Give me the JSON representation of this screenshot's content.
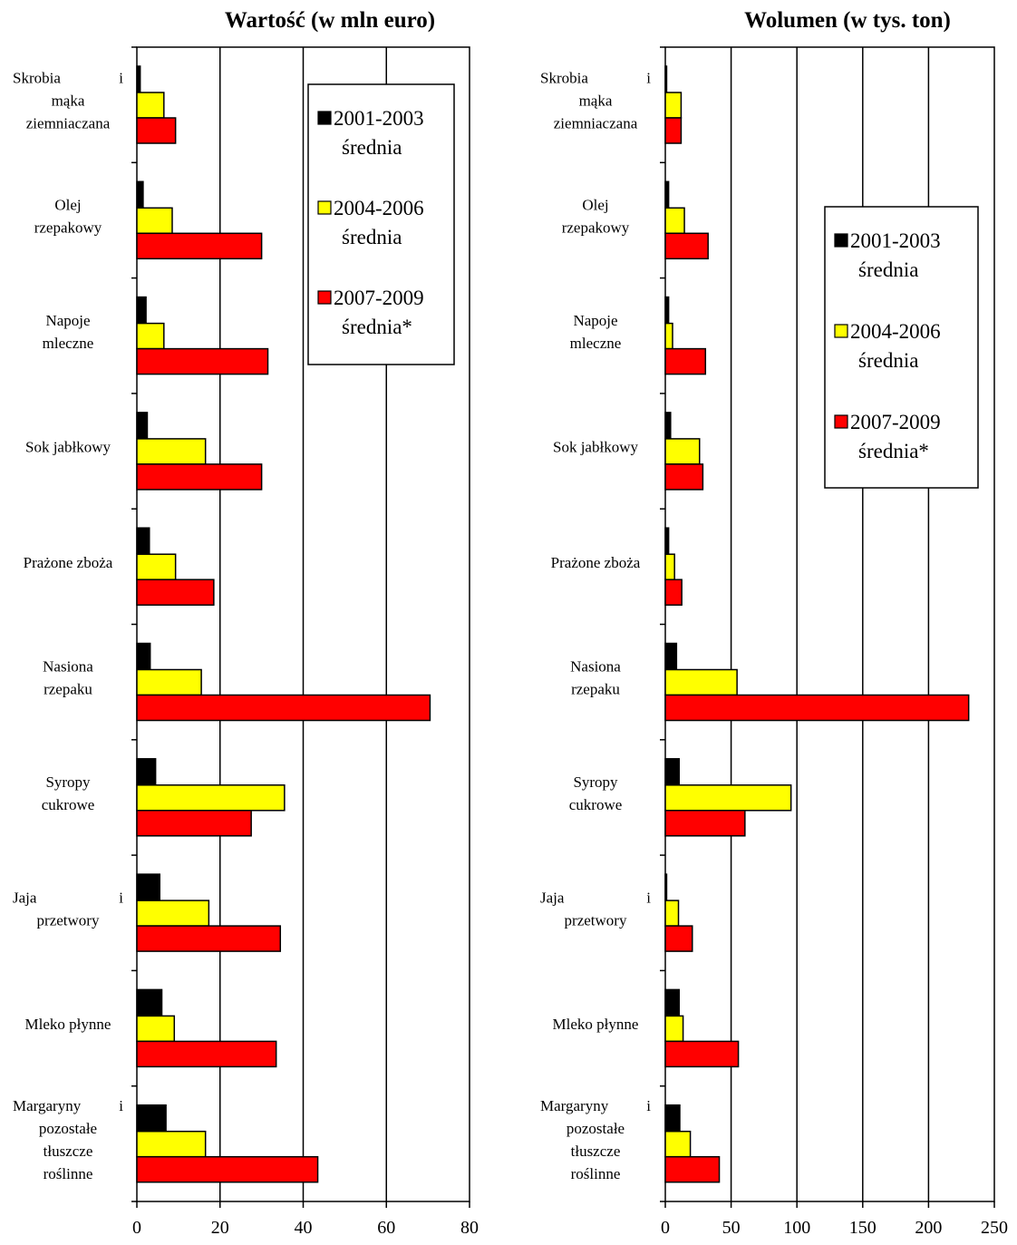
{
  "colors": {
    "s1": "#000000",
    "s2": "#ffff00",
    "s3": "#ff0000"
  },
  "chart_data": [
    {
      "type": "bar",
      "orientation": "horizontal",
      "title": "Wartość (w mln euro)",
      "xlim": [
        0,
        80
      ],
      "ticks": [
        0,
        20,
        40,
        60,
        80
      ],
      "grid": true,
      "legend_position": "top-right",
      "category_lines": [
        [
          "Skrobia",
          "i",
          "mąka",
          "ziemniaczana"
        ],
        [
          "Olej",
          "rzepakowy"
        ],
        [
          "Napoje",
          "mleczne"
        ],
        [
          "Sok jabłkowy"
        ],
        [
          "Prażone zboża"
        ],
        [
          "Nasiona",
          "rzepaku"
        ],
        [
          "Syropy",
          "cukrowe"
        ],
        [
          "Jaja",
          "i",
          "przetwory"
        ],
        [
          "Mleko płynne"
        ],
        [
          "Margaryny",
          "i",
          "pozostałe",
          "tłuszcze",
          "roślinne"
        ]
      ],
      "series": [
        {
          "name": "2001-2003 średnia",
          "color": "#000000",
          "values": [
            0.8,
            1.5,
            2.2,
            2.5,
            3.0,
            3.2,
            4.5,
            5.5,
            6.0,
            7.0
          ]
        },
        {
          "name": "2004-2006 średnia",
          "color": "#ffff00",
          "values": [
            6.5,
            8.5,
            6.5,
            16.5,
            9.3,
            15.5,
            35.5,
            17.3,
            9.0,
            16.5
          ]
        },
        {
          "name": "2007-2009 średnia*",
          "color": "#ff0000",
          "values": [
            9.3,
            30.0,
            31.5,
            30.0,
            18.5,
            70.5,
            27.5,
            34.5,
            33.5,
            43.5
          ]
        }
      ]
    },
    {
      "type": "bar",
      "orientation": "horizontal",
      "title": "Wolumen (w tys. ton)",
      "xlim": [
        0,
        250
      ],
      "ticks": [
        0,
        50,
        100,
        150,
        200,
        250
      ],
      "grid": true,
      "legend_position": "upper-right",
      "category_lines": [
        [
          "Skrobia",
          "i",
          "mąka",
          "ziemniaczana"
        ],
        [
          "Olej",
          "rzepakowy"
        ],
        [
          "Napoje",
          "mleczne"
        ],
        [
          "Sok jabłkowy"
        ],
        [
          "Prażone zboża"
        ],
        [
          "Nasiona",
          "rzepaku"
        ],
        [
          "Syropy",
          "cukrowe"
        ],
        [
          "Jaja",
          "i",
          "przetwory"
        ],
        [
          "Mleko płynne"
        ],
        [
          "Margaryny",
          "i",
          "pozostałe",
          "tłuszcze",
          "roślinne"
        ]
      ],
      "series": [
        {
          "name": "2001-2003 średnia",
          "color": "#000000",
          "values": [
            1.0,
            2.5,
            2.5,
            4.0,
            2.5,
            8.5,
            10.5,
            1.0,
            10.5,
            11.0
          ]
        },
        {
          "name": "2004-2006 średnia",
          "color": "#ffff00",
          "values": [
            12.0,
            14.5,
            5.5,
            26.0,
            7.0,
            54.5,
            95.5,
            10.0,
            13.5,
            19.0
          ]
        },
        {
          "name": "2007-2009 średnia*",
          "color": "#ff0000",
          "values": [
            12.0,
            32.5,
            30.5,
            28.5,
            12.5,
            230.5,
            60.5,
            20.5,
            55.5,
            41.0
          ]
        }
      ]
    }
  ]
}
